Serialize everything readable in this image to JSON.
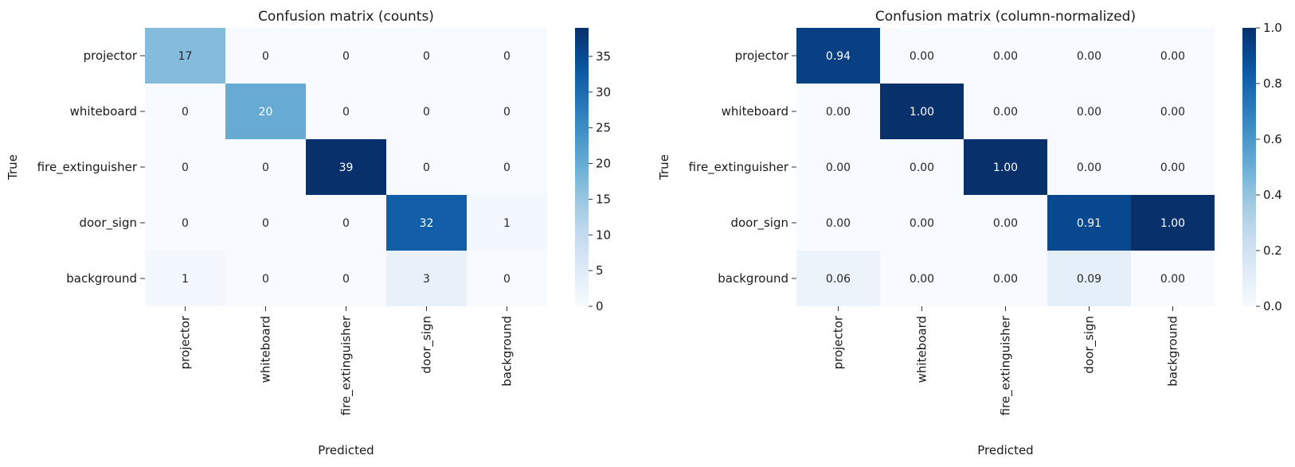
{
  "chart_data": [
    {
      "type": "heatmap",
      "title": "Confusion matrix (counts)",
      "xlabel": "Predicted",
      "ylabel": "True",
      "x_categories": [
        "projector",
        "whiteboard",
        "fire_extinguisher",
        "door_sign",
        "background"
      ],
      "y_categories": [
        "projector",
        "whiteboard",
        "fire_extinguisher",
        "door_sign",
        "background"
      ],
      "values": [
        [
          17,
          0,
          0,
          0,
          0
        ],
        [
          0,
          20,
          0,
          0,
          0
        ],
        [
          0,
          0,
          39,
          0,
          0
        ],
        [
          0,
          0,
          0,
          32,
          1
        ],
        [
          1,
          0,
          0,
          3,
          0
        ]
      ],
      "cell_labels": [
        [
          "17",
          "0",
          "0",
          "0",
          "0"
        ],
        [
          "0",
          "20",
          "0",
          "0",
          "0"
        ],
        [
          "0",
          "0",
          "39",
          "0",
          "0"
        ],
        [
          "0",
          "0",
          "0",
          "32",
          "1"
        ],
        [
          "1",
          "0",
          "0",
          "3",
          "0"
        ]
      ],
      "colormap": "Blues",
      "colorbar": {
        "min": 0,
        "max": 39,
        "ticks": [
          0,
          5,
          10,
          15,
          20,
          25,
          30,
          35
        ],
        "tick_labels": [
          "0",
          "5",
          "10",
          "15",
          "20",
          "25",
          "30",
          "35"
        ]
      }
    },
    {
      "type": "heatmap",
      "title": "Confusion matrix (column-normalized)",
      "xlabel": "Predicted",
      "ylabel": "True",
      "x_categories": [
        "projector",
        "whiteboard",
        "fire_extinguisher",
        "door_sign",
        "background"
      ],
      "y_categories": [
        "projector",
        "whiteboard",
        "fire_extinguisher",
        "door_sign",
        "background"
      ],
      "values": [
        [
          0.94,
          0.0,
          0.0,
          0.0,
          0.0
        ],
        [
          0.0,
          1.0,
          0.0,
          0.0,
          0.0
        ],
        [
          0.0,
          0.0,
          1.0,
          0.0,
          0.0
        ],
        [
          0.0,
          0.0,
          0.0,
          0.91,
          1.0
        ],
        [
          0.06,
          0.0,
          0.0,
          0.09,
          0.0
        ]
      ],
      "cell_labels": [
        [
          "0.94",
          "0.00",
          "0.00",
          "0.00",
          "0.00"
        ],
        [
          "0.00",
          "1.00",
          "0.00",
          "0.00",
          "0.00"
        ],
        [
          "0.00",
          "0.00",
          "1.00",
          "0.00",
          "0.00"
        ],
        [
          "0.00",
          "0.00",
          "0.00",
          "0.91",
          "1.00"
        ],
        [
          "0.06",
          "0.00",
          "0.00",
          "0.09",
          "0.00"
        ]
      ],
      "colormap": "Blues",
      "colorbar": {
        "min": 0,
        "max": 1,
        "ticks": [
          0,
          0.2,
          0.4,
          0.6,
          0.8,
          1.0
        ],
        "tick_labels": [
          "0.0",
          "0.2",
          "0.4",
          "0.6",
          "0.8",
          "1.0"
        ]
      }
    }
  ],
  "colors": {
    "blues_low": "#f7fbff",
    "blues_high": "#08306b"
  }
}
